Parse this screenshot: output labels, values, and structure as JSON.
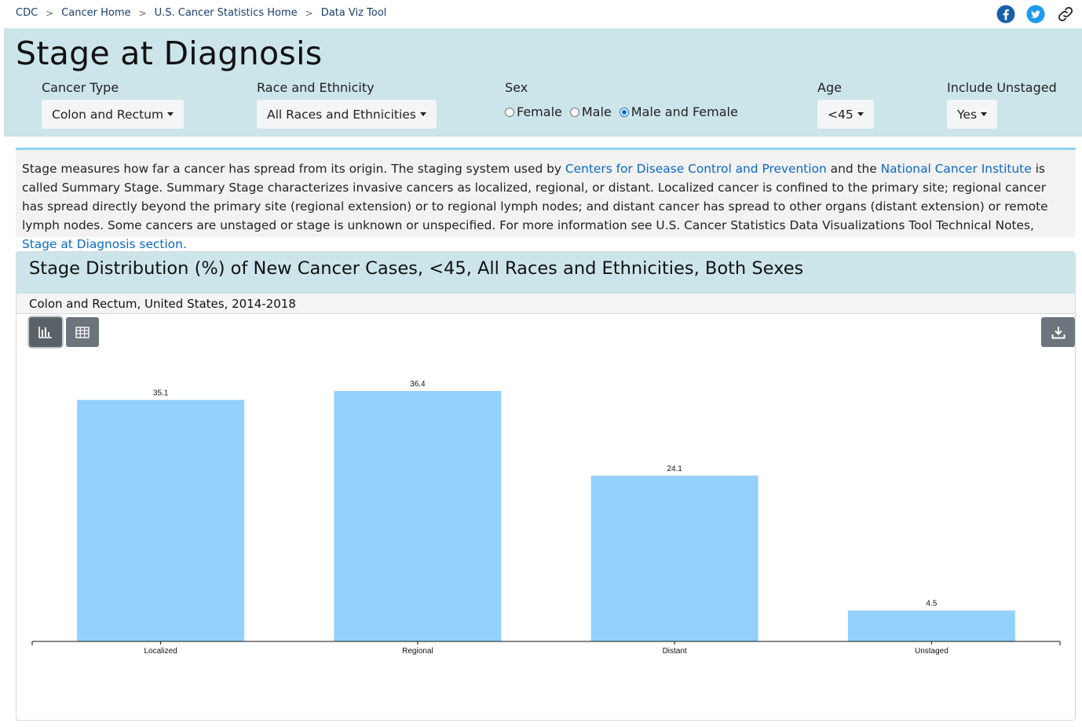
{
  "breadcrumb": [
    "CDC",
    "Cancer Home",
    "U.S. Cancer Statistics Home",
    "Data Viz Tool"
  ],
  "breadcrumb_separator": ">",
  "social_icons": [
    "facebook-icon",
    "twitter-icon",
    "link-icon"
  ],
  "page_title": "Stage at Diagnosis",
  "filters": {
    "cancer_type": {
      "label": "Cancer Type",
      "value": "Colon and Rectum"
    },
    "race": {
      "label": "Race and Ethnicity",
      "value": "All Races and Ethnicities"
    },
    "sex": {
      "label": "Sex",
      "options": [
        "Female",
        "Male",
        "Male and Female"
      ],
      "selected": "Male and Female"
    },
    "age": {
      "label": "Age",
      "value": "<45"
    },
    "include_unstaged": {
      "label": "Include Unstaged",
      "value": "Yes"
    }
  },
  "description": {
    "part1": "Stage measures how far a cancer has spread from its origin. The staging system used by ",
    "link1": "Centers for Disease Control and Prevention",
    "part2": " and the ",
    "link2": "National Cancer Institute",
    "part3": " is called Summary Stage. Summary Stage characterizes invasive cancers as localized, regional, or distant. Localized cancer is confined to the primary site; regional cancer has spread directly beyond the primary site (regional extension) or to regional lymph nodes; and distant cancer has spread to other organs (distant extension) or remote lymph nodes. Some cancers are unstaged or stage is unknown or unspecified. For more information see U.S. Cancer Statistics Data Visualizations Tool Technical Notes, ",
    "link3": "Stage at Diagnosis section."
  },
  "card": {
    "title": "Stage Distribution (%) of New Cancer Cases, <45, All Races and Ethnicities, Both Sexes",
    "subtitle": "Colon and Rectum, United States, 2014-2018"
  },
  "toolbar_icons": [
    "bar-chart-icon",
    "table-icon",
    "download-icon"
  ],
  "colors": {
    "bar": "#93d1fb",
    "header_bg": "#cce5ea",
    "link": "#0a68c4",
    "button": "#6c757d"
  },
  "chart_data": {
    "type": "bar",
    "categories": [
      "Localized",
      "Regional",
      "Distant",
      "Unstaged"
    ],
    "values": [
      35.1,
      36.4,
      24.1,
      4.5
    ],
    "ylim": [
      0,
      36.4
    ],
    "grid": false
  }
}
